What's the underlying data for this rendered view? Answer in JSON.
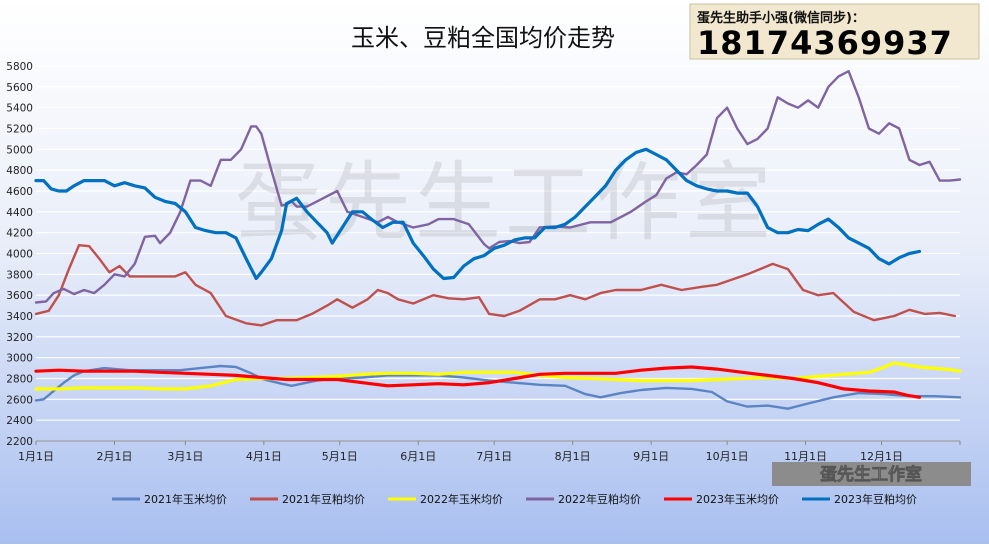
{
  "chart_data": {
    "type": "line",
    "title": "玉米、豆粕全国均价走势",
    "contact": {
      "label": "蛋先生助手小强(微信同步)：",
      "phone": "18174369937"
    },
    "watermark": "蛋先生工作室",
    "badge": "蛋先生工作室",
    "xlabel": "",
    "ylabel": "",
    "ylim": [
      2200,
      5800
    ],
    "y_ticks": [
      2200,
      2400,
      2600,
      2800,
      3000,
      3200,
      3400,
      3600,
      3800,
      4000,
      4200,
      4400,
      4600,
      4800,
      5000,
      5200,
      5400,
      5600,
      5800
    ],
    "x_tick_labels": [
      "1月1日",
      "2月1日",
      "3月1日",
      "4月1日",
      "5月1日",
      "6月1日",
      "7月1日",
      "8月1日",
      "9月1日",
      "10月1日",
      "11月1日",
      "12月1日"
    ],
    "x_ticks_day": [
      1,
      32,
      60,
      91,
      121,
      152,
      182,
      213,
      244,
      274,
      305,
      335
    ],
    "xlim": [
      1,
      366
    ],
    "grid": true,
    "legend_position": "bottom",
    "series": [
      {
        "name": "2021年玉米均价",
        "color": "#5b84c4",
        "x": [
          1,
          4,
          7,
          12,
          16,
          20,
          28,
          38,
          48,
          58,
          66,
          74,
          80,
          86,
          91,
          98,
          102,
          106,
          112,
          120,
          130,
          140,
          150,
          160,
          170,
          180,
          190,
          200,
          210,
          218,
          224,
          232,
          240,
          250,
          260,
          268,
          274,
          282,
          290,
          298,
          306,
          316,
          326,
          336,
          346,
          356,
          366
        ],
        "y": [
          2590,
          2600,
          2660,
          2760,
          2830,
          2870,
          2900,
          2880,
          2880,
          2880,
          2900,
          2920,
          2910,
          2850,
          2790,
          2750,
          2730,
          2750,
          2780,
          2800,
          2810,
          2830,
          2830,
          2830,
          2810,
          2780,
          2760,
          2740,
          2730,
          2650,
          2620,
          2660,
          2690,
          2710,
          2700,
          2670,
          2580,
          2530,
          2540,
          2510,
          2560,
          2620,
          2660,
          2650,
          2630,
          2630,
          2620
        ]
      },
      {
        "name": "2021年豆粕均价",
        "color": "#c0504d",
        "x": [
          1,
          6,
          10,
          14,
          18,
          22,
          26,
          30,
          34,
          38,
          44,
          50,
          56,
          60,
          64,
          70,
          76,
          84,
          90,
          96,
          104,
          110,
          116,
          120,
          126,
          132,
          136,
          140,
          144,
          150,
          158,
          164,
          170,
          176,
          180,
          186,
          192,
          200,
          206,
          212,
          218,
          224,
          230,
          240,
          248,
          256,
          264,
          270,
          276,
          282,
          288,
          292,
          298,
          304,
          310,
          316,
          324,
          332,
          340,
          346,
          352,
          358,
          364
        ],
        "y": [
          3420,
          3450,
          3600,
          3850,
          4080,
          4070,
          3950,
          3820,
          3880,
          3780,
          3780,
          3780,
          3780,
          3820,
          3700,
          3620,
          3400,
          3330,
          3310,
          3360,
          3360,
          3420,
          3500,
          3560,
          3480,
          3560,
          3650,
          3620,
          3560,
          3520,
          3600,
          3570,
          3560,
          3580,
          3420,
          3400,
          3450,
          3560,
          3560,
          3600,
          3560,
          3620,
          3650,
          3650,
          3700,
          3650,
          3680,
          3700,
          3750,
          3800,
          3860,
          3900,
          3850,
          3650,
          3600,
          3620,
          3440,
          3360,
          3400,
          3460,
          3420,
          3430,
          3400
        ]
      },
      {
        "name": "2022年玉米均价",
        "color": "#ffff00",
        "x": [
          1,
          10,
          20,
          30,
          40,
          50,
          60,
          70,
          80,
          90,
          100,
          110,
          120,
          130,
          140,
          150,
          160,
          170,
          180,
          190,
          200,
          210,
          220,
          230,
          240,
          250,
          260,
          270,
          280,
          290,
          300,
          310,
          320,
          330,
          335,
          340,
          345,
          350,
          355,
          360,
          366
        ],
        "y": [
          2700,
          2700,
          2710,
          2710,
          2710,
          2700,
          2700,
          2730,
          2790,
          2800,
          2800,
          2810,
          2820,
          2840,
          2850,
          2850,
          2840,
          2860,
          2860,
          2860,
          2830,
          2810,
          2800,
          2790,
          2780,
          2780,
          2780,
          2790,
          2800,
          2810,
          2800,
          2820,
          2840,
          2860,
          2900,
          2950,
          2930,
          2910,
          2900,
          2890,
          2870
        ]
      },
      {
        "name": "2022年豆粕均价",
        "color": "#8064a2",
        "x": [
          1,
          5,
          8,
          12,
          16,
          20,
          24,
          28,
          32,
          36,
          40,
          44,
          48,
          50,
          54,
          58,
          62,
          66,
          70,
          74,
          78,
          82,
          86,
          88,
          90,
          94,
          98,
          100,
          102,
          104,
          108,
          112,
          116,
          120,
          124,
          130,
          136,
          140,
          144,
          150,
          156,
          160,
          166,
          172,
          178,
          180,
          184,
          188,
          192,
          196,
          200,
          206,
          212,
          220,
          228,
          236,
          242,
          246,
          250,
          254,
          258,
          262,
          266,
          270,
          274,
          278,
          282,
          286,
          290,
          294,
          298,
          302,
          306,
          310,
          314,
          318,
          322,
          326,
          330,
          334,
          338,
          342,
          346,
          350,
          354,
          358,
          362,
          366
        ],
        "y": [
          3530,
          3540,
          3620,
          3660,
          3610,
          3650,
          3620,
          3700,
          3800,
          3780,
          3900,
          4160,
          4170,
          4100,
          4200,
          4400,
          4700,
          4700,
          4650,
          4900,
          4900,
          5000,
          5220,
          5220,
          5150,
          4800,
          4460,
          4470,
          4500,
          4450,
          4450,
          4500,
          4550,
          4600,
          4400,
          4350,
          4300,
          4350,
          4300,
          4250,
          4280,
          4330,
          4330,
          4280,
          4090,
          4050,
          4110,
          4120,
          4100,
          4110,
          4250,
          4260,
          4250,
          4300,
          4300,
          4400,
          4500,
          4560,
          4720,
          4780,
          4760,
          4850,
          4950,
          5300,
          5400,
          5200,
          5050,
          5100,
          5200,
          5500,
          5440,
          5400,
          5470,
          5400,
          5600,
          5700,
          5750,
          5500,
          5200,
          5150,
          5250,
          5200,
          4900,
          4850,
          4880,
          4700,
          4700,
          4710
        ]
      },
      {
        "name": "2023年玉米均价",
        "color": "#ff0000",
        "x": [
          1,
          10,
          20,
          30,
          40,
          50,
          60,
          70,
          80,
          90,
          100,
          110,
          120,
          130,
          140,
          150,
          160,
          170,
          180,
          190,
          200,
          210,
          220,
          230,
          240,
          250,
          260,
          270,
          280,
          290,
          300,
          310,
          320,
          330,
          340,
          345,
          350
        ],
        "y": [
          2870,
          2880,
          2870,
          2870,
          2870,
          2860,
          2850,
          2840,
          2830,
          2810,
          2790,
          2790,
          2790,
          2760,
          2730,
          2740,
          2750,
          2740,
          2760,
          2800,
          2840,
          2850,
          2850,
          2850,
          2880,
          2900,
          2910,
          2890,
          2860,
          2830,
          2800,
          2760,
          2700,
          2680,
          2670,
          2640,
          2620
        ]
      },
      {
        "name": "2023年豆粕均价",
        "color": "#0070c0",
        "x": [
          1,
          4,
          7,
          10,
          13,
          16,
          20,
          24,
          28,
          32,
          36,
          40,
          44,
          48,
          52,
          56,
          60,
          64,
          68,
          72,
          76,
          80,
          84,
          88,
          90,
          94,
          98,
          100,
          104,
          108,
          112,
          116,
          118,
          122,
          126,
          130,
          134,
          138,
          142,
          146,
          150,
          154,
          158,
          162,
          166,
          170,
          174,
          178,
          182,
          186,
          190,
          194,
          198,
          202,
          206,
          210,
          214,
          218,
          222,
          226,
          230,
          234,
          238,
          242,
          246,
          250,
          254,
          258,
          262,
          266,
          270,
          274,
          278,
          282,
          286,
          290,
          294,
          298,
          302,
          306,
          310,
          314,
          318,
          322,
          326,
          330,
          334,
          338,
          342,
          346,
          350
        ],
        "y": [
          4700,
          4700,
          4620,
          4600,
          4600,
          4650,
          4700,
          4700,
          4700,
          4650,
          4680,
          4650,
          4630,
          4540,
          4500,
          4480,
          4400,
          4250,
          4220,
          4200,
          4200,
          4150,
          3950,
          3760,
          3820,
          3950,
          4220,
          4480,
          4530,
          4400,
          4300,
          4200,
          4100,
          4250,
          4400,
          4400,
          4320,
          4250,
          4300,
          4300,
          4100,
          3980,
          3850,
          3760,
          3770,
          3880,
          3950,
          3980,
          4050,
          4080,
          4130,
          4150,
          4150,
          4250,
          4250,
          4280,
          4350,
          4450,
          4550,
          4650,
          4800,
          4900,
          4970,
          5000,
          4950,
          4900,
          4800,
          4700,
          4650,
          4620,
          4600,
          4600,
          4580,
          4580,
          4450,
          4250,
          4200,
          4200,
          4230,
          4220,
          4280,
          4330,
          4250,
          4150,
          4100,
          4050,
          3950,
          3900,
          3960,
          4000,
          4020
        ]
      }
    ]
  }
}
